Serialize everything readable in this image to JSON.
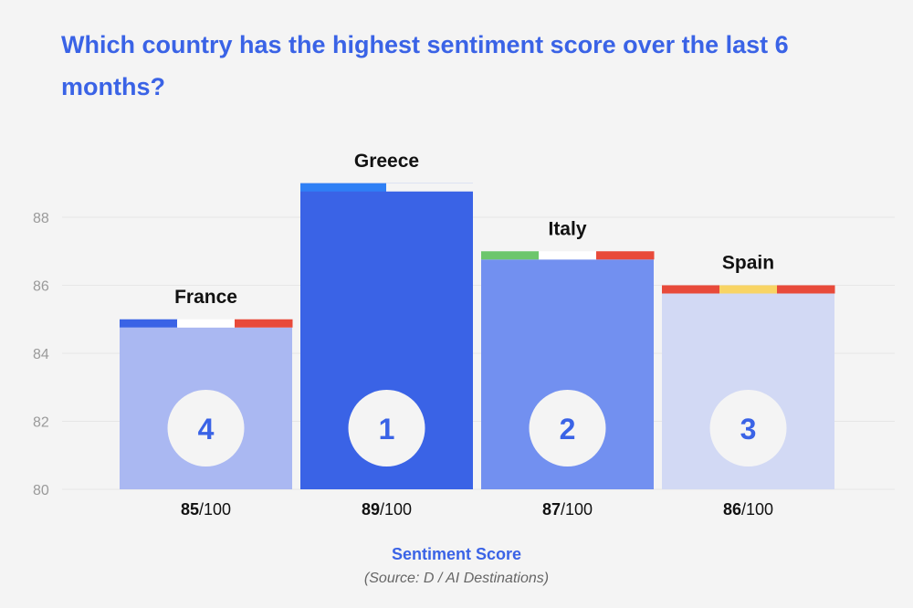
{
  "title": "Which country has the highest sentiment score over the last 6 months?",
  "chart_data": {
    "type": "bar",
    "categories": [
      "France",
      "Greece",
      "Italy",
      "Spain"
    ],
    "values": [
      85,
      89,
      87,
      86
    ],
    "ranks": [
      "4",
      "1",
      "2",
      "3"
    ],
    "score_values": [
      "85",
      "89",
      "87",
      "86"
    ],
    "score_suffix": "/100",
    "bar_colors": [
      "#aab8f2",
      "#3a63e6",
      "#7290f0",
      "#d2d9f4"
    ],
    "stripe_colors": [
      [
        "#3a63e6",
        "#ffffff",
        "#e84a3a"
      ],
      [
        "#2f80f5"
      ],
      [
        "#6cc66c",
        "#ffffff",
        "#e84a3a"
      ],
      [
        "#e84a3a",
        "#f8d464",
        "#e84a3a"
      ]
    ],
    "ylim": [
      80,
      89
    ],
    "yticks": [
      "80",
      "82",
      "84",
      "86",
      "88"
    ],
    "grid": true,
    "xlabel": "Sentiment Score",
    "ylabel": "",
    "source": "(Source: D / AI Destinations)"
  }
}
